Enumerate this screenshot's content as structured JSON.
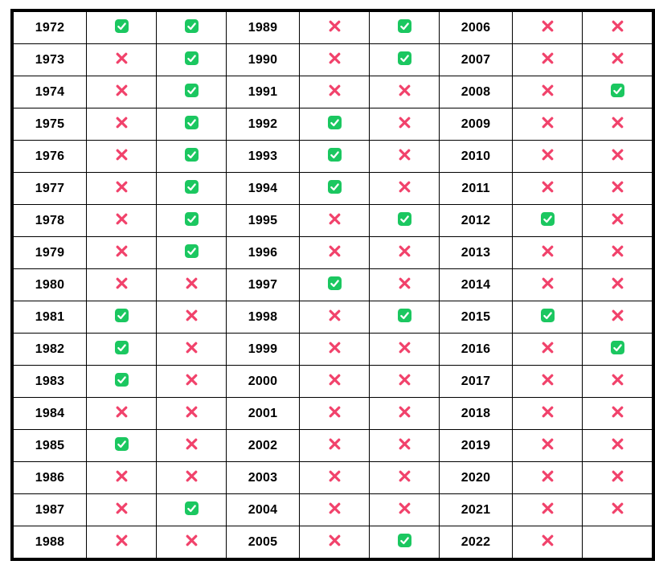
{
  "colors": {
    "check_green": "#1BC760",
    "check_mark_white": "#FFFFFF",
    "cross_red": "#F1426B",
    "border_black": "#000000",
    "background": "#FFFFFF"
  },
  "icons": {
    "check": "check-icon",
    "cross": "cross-icon"
  },
  "layout": {
    "groups": 3,
    "rows_per_group": 17
  },
  "chart_data": {
    "type": "table",
    "title": "",
    "header_visible": false,
    "row_format": [
      "year",
      "status_1",
      "status_2"
    ],
    "rows": [
      [
        "1972",
        "check",
        "check"
      ],
      [
        "1973",
        "cross",
        "check"
      ],
      [
        "1974",
        "cross",
        "check"
      ],
      [
        "1975",
        "cross",
        "check"
      ],
      [
        "1976",
        "cross",
        "check"
      ],
      [
        "1977",
        "cross",
        "check"
      ],
      [
        "1978",
        "cross",
        "check"
      ],
      [
        "1979",
        "cross",
        "check"
      ],
      [
        "1980",
        "cross",
        "cross"
      ],
      [
        "1981",
        "check",
        "cross"
      ],
      [
        "1982",
        "check",
        "cross"
      ],
      [
        "1983",
        "check",
        "cross"
      ],
      [
        "1984",
        "cross",
        "cross"
      ],
      [
        "1985",
        "check",
        "cross"
      ],
      [
        "1986",
        "cross",
        "cross"
      ],
      [
        "1987",
        "cross",
        "check"
      ],
      [
        "1988",
        "cross",
        "cross"
      ],
      [
        "1989",
        "cross",
        "check"
      ],
      [
        "1990",
        "cross",
        "check"
      ],
      [
        "1991",
        "cross",
        "cross"
      ],
      [
        "1992",
        "check",
        "cross"
      ],
      [
        "1993",
        "check",
        "cross"
      ],
      [
        "1994",
        "check",
        "cross"
      ],
      [
        "1995",
        "cross",
        "check"
      ],
      [
        "1996",
        "cross",
        "cross"
      ],
      [
        "1997",
        "check",
        "cross"
      ],
      [
        "1998",
        "cross",
        "check"
      ],
      [
        "1999",
        "cross",
        "cross"
      ],
      [
        "2000",
        "cross",
        "cross"
      ],
      [
        "2001",
        "cross",
        "cross"
      ],
      [
        "2002",
        "cross",
        "cross"
      ],
      [
        "2003",
        "cross",
        "cross"
      ],
      [
        "2004",
        "cross",
        "cross"
      ],
      [
        "2005",
        "cross",
        "check"
      ],
      [
        "2006",
        "cross",
        "cross"
      ],
      [
        "2007",
        "cross",
        "cross"
      ],
      [
        "2008",
        "cross",
        "check"
      ],
      [
        "2009",
        "cross",
        "cross"
      ],
      [
        "2010",
        "cross",
        "cross"
      ],
      [
        "2011",
        "cross",
        "cross"
      ],
      [
        "2012",
        "check",
        "cross"
      ],
      [
        "2013",
        "cross",
        "cross"
      ],
      [
        "2014",
        "cross",
        "cross"
      ],
      [
        "2015",
        "check",
        "cross"
      ],
      [
        "2016",
        "cross",
        "check"
      ],
      [
        "2017",
        "cross",
        "cross"
      ],
      [
        "2018",
        "cross",
        "cross"
      ],
      [
        "2019",
        "cross",
        "cross"
      ],
      [
        "2020",
        "cross",
        "cross"
      ],
      [
        "2021",
        "cross",
        "cross"
      ],
      [
        "2022",
        "cross",
        "none"
      ]
    ]
  }
}
